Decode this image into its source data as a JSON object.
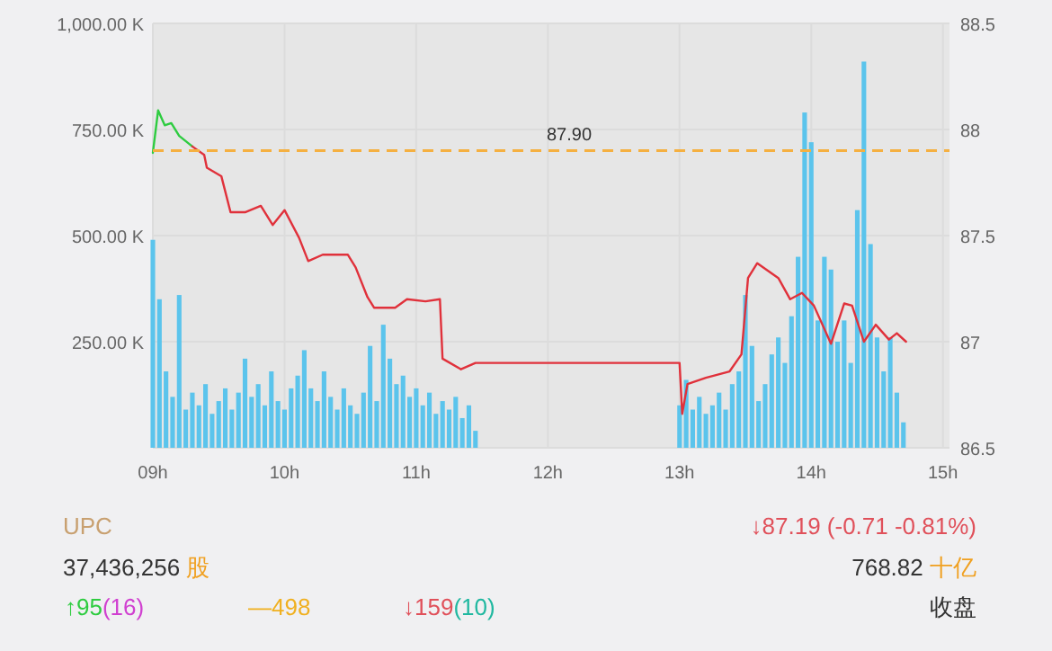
{
  "chart_data": {
    "type": "bar",
    "x": [
      9.0,
      9.05,
      9.1,
      9.15,
      9.2,
      9.25,
      9.3,
      9.35,
      9.4,
      9.45,
      9.5,
      9.55,
      9.6,
      9.65,
      9.7,
      9.75,
      9.8,
      9.85,
      9.9,
      9.95,
      10.0,
      10.05,
      10.1,
      10.15,
      10.2,
      10.25,
      10.3,
      10.35,
      10.4,
      10.45,
      10.5,
      10.55,
      10.6,
      10.65,
      10.7,
      10.75,
      10.8,
      10.85,
      10.9,
      10.95,
      11.0,
      11.05,
      11.1,
      11.15,
      11.2,
      11.25,
      11.3,
      11.35,
      11.4,
      11.45,
      13.0,
      13.05,
      13.1,
      13.15,
      13.2,
      13.25,
      13.3,
      13.35,
      13.4,
      13.45,
      13.5,
      13.55,
      13.6,
      13.65,
      13.7,
      13.75,
      13.8,
      13.85,
      13.9,
      13.95,
      14.0,
      14.05,
      14.1,
      14.15,
      14.2,
      14.25,
      14.3,
      14.35,
      14.4,
      14.45,
      14.5,
      14.55,
      14.6,
      14.65,
      14.7
    ],
    "series": [
      {
        "color": "#5bc4ec",
        "values": [
          490,
          350,
          180,
          120,
          360,
          90,
          130,
          100,
          150,
          80,
          110,
          140,
          90,
          130,
          210,
          120,
          150,
          100,
          180,
          110,
          90,
          140,
          170,
          230,
          140,
          110,
          180,
          120,
          90,
          140,
          100,
          80,
          130,
          240,
          110,
          290,
          210,
          150,
          170,
          120,
          140,
          100,
          130,
          80,
          110,
          90,
          120,
          70,
          100,
          40,
          100,
          160,
          90,
          120,
          80,
          100,
          130,
          90,
          150,
          180,
          360,
          240,
          110,
          150,
          220,
          260,
          200,
          310,
          450,
          790,
          720,
          300,
          450,
          420,
          250,
          300,
          200,
          560,
          910,
          480,
          260,
          180,
          260,
          130,
          60
        ]
      },
      {
        "type": "line",
        "axis": "y2",
        "color": "#2ecc40",
        "x": [
          9.0,
          9.04,
          9.09,
          9.14,
          9.2,
          9.3
        ],
        "values": [
          87.89,
          88.09,
          88.02,
          88.03,
          87.97,
          87.92
        ]
      },
      {
        "type": "line",
        "axis": "y2",
        "color": "#e0313b",
        "x": [
          9.3,
          9.39,
          9.41,
          9.52,
          9.59,
          9.7,
          9.82,
          9.91,
          10.0,
          10.11,
          10.18,
          10.29,
          10.48,
          10.54,
          10.63,
          10.68,
          10.84,
          10.93,
          11.07,
          11.18,
          11.2,
          11.34,
          11.45,
          13.0,
          13.02,
          13.06,
          13.2,
          13.38,
          13.47,
          13.52,
          13.59,
          13.75,
          13.84,
          13.93,
          14.02,
          14.15,
          14.25,
          14.31,
          14.4,
          14.49,
          14.59,
          14.65,
          14.72
        ],
        "values": [
          87.92,
          87.88,
          87.82,
          87.78,
          87.61,
          87.61,
          87.64,
          87.55,
          87.62,
          87.49,
          87.38,
          87.41,
          87.41,
          87.35,
          87.21,
          87.16,
          87.16,
          87.2,
          87.19,
          87.2,
          86.92,
          86.87,
          86.9,
          86.9,
          86.66,
          86.8,
          86.83,
          86.86,
          86.94,
          87.3,
          87.37,
          87.3,
          87.2,
          87.23,
          87.17,
          86.99,
          87.18,
          87.17,
          87.0,
          87.08,
          87.01,
          87.04,
          87.0
        ]
      }
    ],
    "xlim": [
      9,
      15.05
    ],
    "xticks": [
      {
        "value": 9,
        "label": "09h"
      },
      {
        "value": 10,
        "label": "10h"
      },
      {
        "value": 11,
        "label": "11h"
      },
      {
        "value": 12,
        "label": "12h"
      },
      {
        "value": 13,
        "label": "13h"
      },
      {
        "value": 14,
        "label": "14h"
      },
      {
        "value": 15,
        "label": "15h"
      }
    ],
    "ylim": [
      0,
      1000
    ],
    "yticks": [
      {
        "value": 0,
        "label": null
      },
      {
        "value": 250,
        "label": "250.00 K"
      },
      {
        "value": 500,
        "label": "500.00 K"
      },
      {
        "value": 750,
        "label": "750.00 K"
      },
      {
        "value": 1000,
        "label": "1,000.00 K"
      }
    ],
    "y2lim": [
      86.5,
      88.5
    ],
    "y2ticks": [
      86.5,
      87,
      87.5,
      88,
      88.5
    ],
    "grid": true,
    "ref_lines": [
      {
        "axis": "y2",
        "value": 87.9,
        "label": "87.90",
        "color": "#f5b041",
        "line_style": "dashed"
      }
    ],
    "annotations": [
      "UPC",
      "↓87.19 (-0.71 -0.81%)",
      "37,436,256",
      "股",
      "768.82",
      "十亿",
      "↑95",
      "(16)",
      "—498",
      "↓159",
      "(10)",
      "收盘"
    ]
  }
}
